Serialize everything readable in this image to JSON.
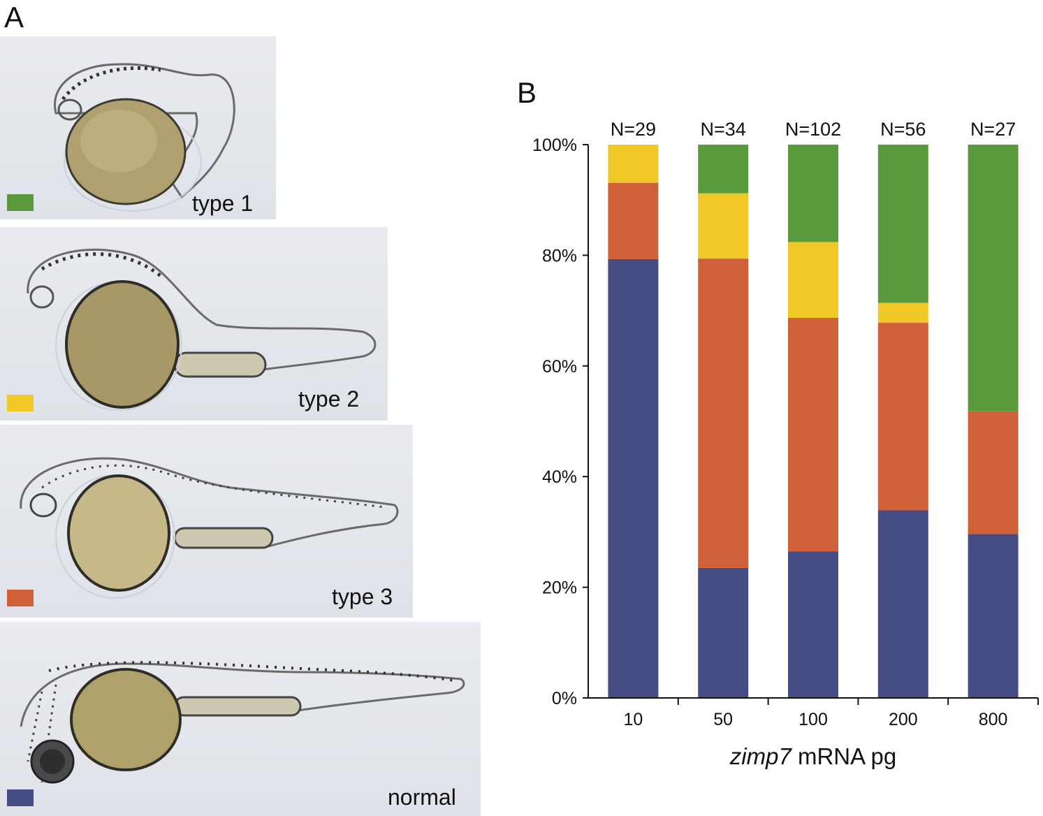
{
  "panels": {
    "a_label": "A",
    "b_label": "B"
  },
  "phenotypes": [
    {
      "label": "type 1",
      "color": "#5a9a3c"
    },
    {
      "label": "type 2",
      "color": "#f0c828"
    },
    {
      "label": "type 3",
      "color": "#cf6038"
    },
    {
      "label": "normal",
      "color": "#464c84"
    }
  ],
  "chart_data": {
    "type": "bar",
    "stacked": true,
    "categories": [
      "10",
      "50",
      "100",
      "200",
      "800"
    ],
    "counts": [
      "N=29",
      "N=34",
      "N=102",
      "N=56",
      "N=27"
    ],
    "xlabel_italic": "zimp7",
    "xlabel_rest": " mRNA pg",
    "ylabel": "",
    "ylim": [
      0,
      100
    ],
    "yticks": [
      "0%",
      "20%",
      "40%",
      "60%",
      "80%",
      "100%"
    ],
    "grid": false,
    "series": [
      {
        "phenotype": "normal",
        "color": "#464c84",
        "values": [
          79.3,
          23.5,
          26.5,
          33.9,
          29.6
        ]
      },
      {
        "phenotype": "type 3",
        "color": "#cf6038",
        "values": [
          13.8,
          55.9,
          42.2,
          33.9,
          22.2
        ]
      },
      {
        "phenotype": "type 2",
        "color": "#f0c828",
        "values": [
          6.9,
          11.8,
          13.7,
          3.6,
          0
        ]
      },
      {
        "phenotype": "type 1",
        "color": "#5a9a3c",
        "values": [
          0,
          8.8,
          17.6,
          28.6,
          48.2
        ]
      }
    ]
  }
}
